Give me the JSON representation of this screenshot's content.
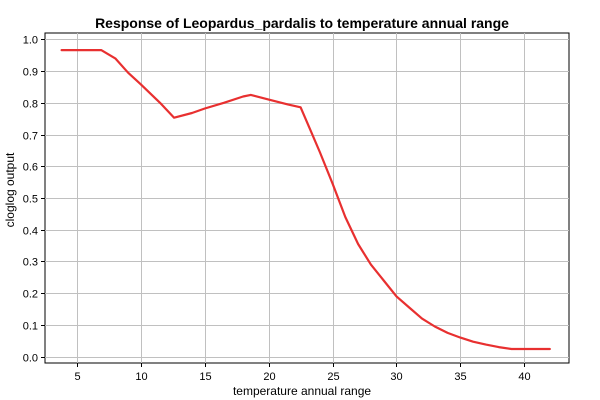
{
  "chart_data": {
    "type": "line",
    "title": "Response of Leopardus_pardalis to temperature annual range",
    "xlabel": "temperature annual range",
    "ylabel": "cloglog output",
    "xlim": [
      2.5,
      43.5
    ],
    "ylim": [
      -0.02,
      1.02
    ],
    "xticks": [
      5,
      10,
      15,
      20,
      25,
      30,
      35,
      40
    ],
    "yticks": [
      0.0,
      0.1,
      0.2,
      0.3,
      0.4,
      0.5,
      0.6,
      0.7,
      0.8,
      0.9,
      1.0
    ],
    "xtick_labels": [
      "5",
      "10",
      "15",
      "20",
      "25",
      "30",
      "35",
      "40"
    ],
    "ytick_labels": [
      "0.0",
      "0.1",
      "0.2",
      "0.3",
      "0.4",
      "0.5",
      "0.6",
      "0.7",
      "0.8",
      "0.9",
      "1.0"
    ],
    "grid": true,
    "series": [
      {
        "color": "#e83030",
        "x": [
          3.8,
          5.0,
          6.9,
          8.0,
          9.0,
          10.0,
          11.5,
          12.6,
          14.0,
          15.0,
          16.5,
          18.0,
          18.6,
          20.0,
          21.5,
          22.5,
          23.2,
          24.0,
          25.0,
          26.0,
          27.0,
          28.0,
          29.0,
          30.0,
          31.0,
          32.0,
          33.0,
          34.0,
          35.0,
          36.0,
          37.0,
          38.0,
          39.0,
          40.0,
          41.0,
          42.0
        ],
        "y": [
          0.966,
          0.966,
          0.966,
          0.94,
          0.895,
          0.858,
          0.8,
          0.753,
          0.768,
          0.782,
          0.8,
          0.82,
          0.825,
          0.81,
          0.795,
          0.786,
          0.72,
          0.645,
          0.545,
          0.44,
          0.355,
          0.29,
          0.24,
          0.19,
          0.155,
          0.12,
          0.095,
          0.075,
          0.06,
          0.047,
          0.038,
          0.03,
          0.024,
          0.024,
          0.024,
          0.024
        ]
      }
    ]
  }
}
